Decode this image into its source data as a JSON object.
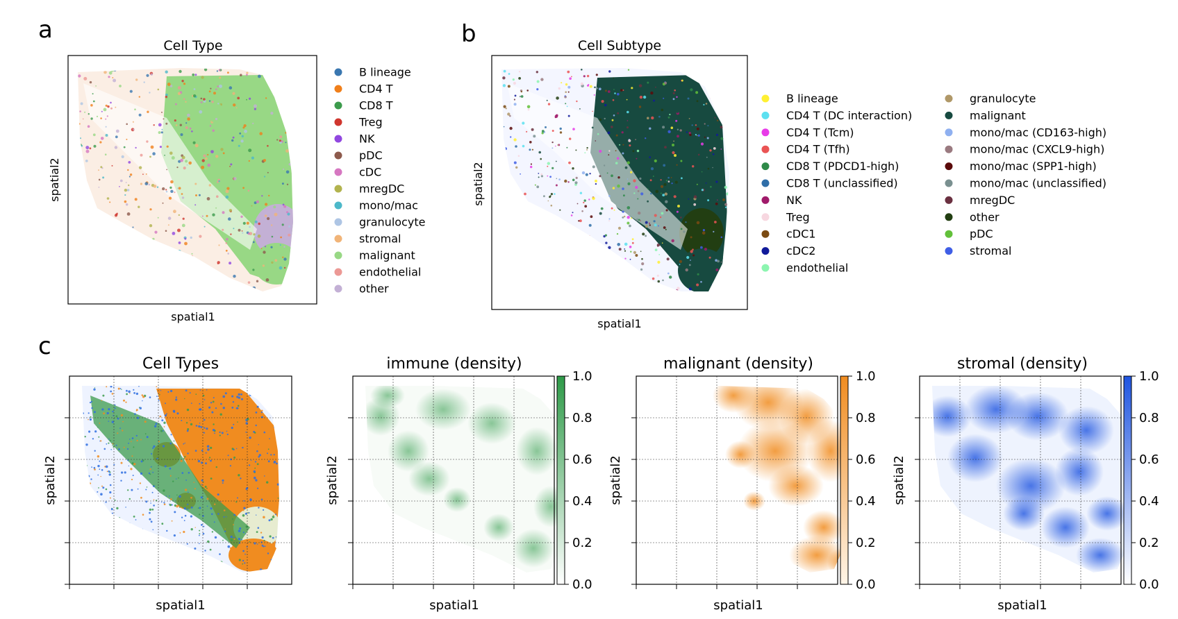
{
  "panels": {
    "a": {
      "letter": "a",
      "title": "Cell Type",
      "xlabel": "spatial1",
      "ylabel": "spatial2",
      "legend": [
        {
          "label": "B lineage",
          "color": "#3a77b0"
        },
        {
          "label": "CD4 T",
          "color": "#f07f1a"
        },
        {
          "label": "CD8 T",
          "color": "#3c9b4c"
        },
        {
          "label": "Treg",
          "color": "#d0362e"
        },
        {
          "label": "NK",
          "color": "#9147e0"
        },
        {
          "label": "pDC",
          "color": "#8d5a4c"
        },
        {
          "label": "cDC",
          "color": "#d677c1"
        },
        {
          "label": "mregDC",
          "color": "#b2b34e"
        },
        {
          "label": "mono/mac",
          "color": "#4cb8c9"
        },
        {
          "label": "granulocyte",
          "color": "#aec5e4"
        },
        {
          "label": "stromal",
          "color": "#f1b478"
        },
        {
          "label": "malignant",
          "color": "#98d885"
        },
        {
          "label": "endothelial",
          "color": "#ec9995"
        },
        {
          "label": "other",
          "color": "#c3b0d5"
        }
      ]
    },
    "b": {
      "letter": "b",
      "title": "Cell Subtype",
      "xlabel": "spatial1",
      "ylabel": "spatial2",
      "legend_col1": [
        {
          "label": "B lineage",
          "color": "#fff033"
        },
        {
          "label": "CD4 T (DC interaction)",
          "color": "#5ce0f0"
        },
        {
          "label": "CD4 T (Tcm)",
          "color": "#e83be8"
        },
        {
          "label": "CD4 T (Tfh)",
          "color": "#ea5454"
        },
        {
          "label": "CD8 T (PDCD1-high)",
          "color": "#2e8a48"
        },
        {
          "label": "CD8 T (unclassified)",
          "color": "#2f6ea8"
        },
        {
          "label": "NK",
          "color": "#a01a6a"
        },
        {
          "label": "Treg",
          "color": "#f7d7e0"
        },
        {
          "label": "cDC1",
          "color": "#7a4a12"
        },
        {
          "label": "cDC2",
          "color": "#101a9a"
        },
        {
          "label": "endothelial",
          "color": "#8cf5b0"
        }
      ],
      "legend_col2": [
        {
          "label": "granulocyte",
          "color": "#b09868"
        },
        {
          "label": "malignant",
          "color": "#174a40"
        },
        {
          "label": "mono/mac (CD163-high)",
          "color": "#8fb0f0"
        },
        {
          "label": "mono/mac (CXCL9-high)",
          "color": "#9a7a80"
        },
        {
          "label": "mono/mac (SPP1-high)",
          "color": "#5a0a0a"
        },
        {
          "label": "mono/mac (unclassified)",
          "color": "#7a9090"
        },
        {
          "label": "mregDC",
          "color": "#6a3040"
        },
        {
          "label": "other",
          "color": "#223e12"
        },
        {
          "label": "pDC",
          "color": "#62c03a"
        },
        {
          "label": "stromal",
          "color": "#3f5ee6"
        }
      ]
    },
    "c": {
      "letter": "c",
      "subplots": [
        {
          "title": "Cell Types",
          "xlabel": "spatial1",
          "ylabel": "spatial2"
        },
        {
          "title": "immune (density)",
          "xlabel": "spatial1",
          "ylabel": "spatial2",
          "cmap_color": "#2e9a48"
        },
        {
          "title": "malignant (density)",
          "xlabel": "spatial1",
          "ylabel": "spatial2",
          "cmap_color": "#f08c20"
        },
        {
          "title": "stromal (density)",
          "xlabel": "spatial1",
          "ylabel": "spatial2",
          "cmap_color": "#1f55e0"
        }
      ],
      "colorbar_ticks": [
        "0.0",
        "0.2",
        "0.4",
        "0.6",
        "0.8",
        "1.0"
      ]
    }
  },
  "chart_data": [
    {
      "type": "scatter",
      "title": "Cell Type",
      "xlabel": "spatial1",
      "ylabel": "spatial2",
      "series": [
        {
          "name": "B lineage"
        },
        {
          "name": "CD4 T"
        },
        {
          "name": "CD8 T"
        },
        {
          "name": "Treg"
        },
        {
          "name": "NK"
        },
        {
          "name": "pDC"
        },
        {
          "name": "cDC"
        },
        {
          "name": "mregDC"
        },
        {
          "name": "mono/mac"
        },
        {
          "name": "granulocyte"
        },
        {
          "name": "stromal"
        },
        {
          "name": "malignant"
        },
        {
          "name": "endothelial"
        },
        {
          "name": "other"
        }
      ],
      "legend": "right",
      "grid": false
    },
    {
      "type": "scatter",
      "title": "Cell Subtype",
      "xlabel": "spatial1",
      "ylabel": "spatial2",
      "legend": "right",
      "grid": false
    },
    {
      "type": "scatter",
      "title": "Cell Types",
      "xlabel": "spatial1",
      "ylabel": "spatial2",
      "grid": true
    },
    {
      "type": "heatmap",
      "title": "immune (density)",
      "xlabel": "spatial1",
      "ylabel": "spatial2",
      "colorbar_range": [
        0,
        1
      ],
      "grid": true
    },
    {
      "type": "heatmap",
      "title": "malignant (density)",
      "xlabel": "spatial1",
      "ylabel": "spatial2",
      "colorbar_range": [
        0,
        1
      ],
      "grid": true
    },
    {
      "type": "heatmap",
      "title": "stromal (density)",
      "xlabel": "spatial1",
      "ylabel": "spatial2",
      "colorbar_range": [
        0,
        1
      ],
      "grid": true
    }
  ]
}
